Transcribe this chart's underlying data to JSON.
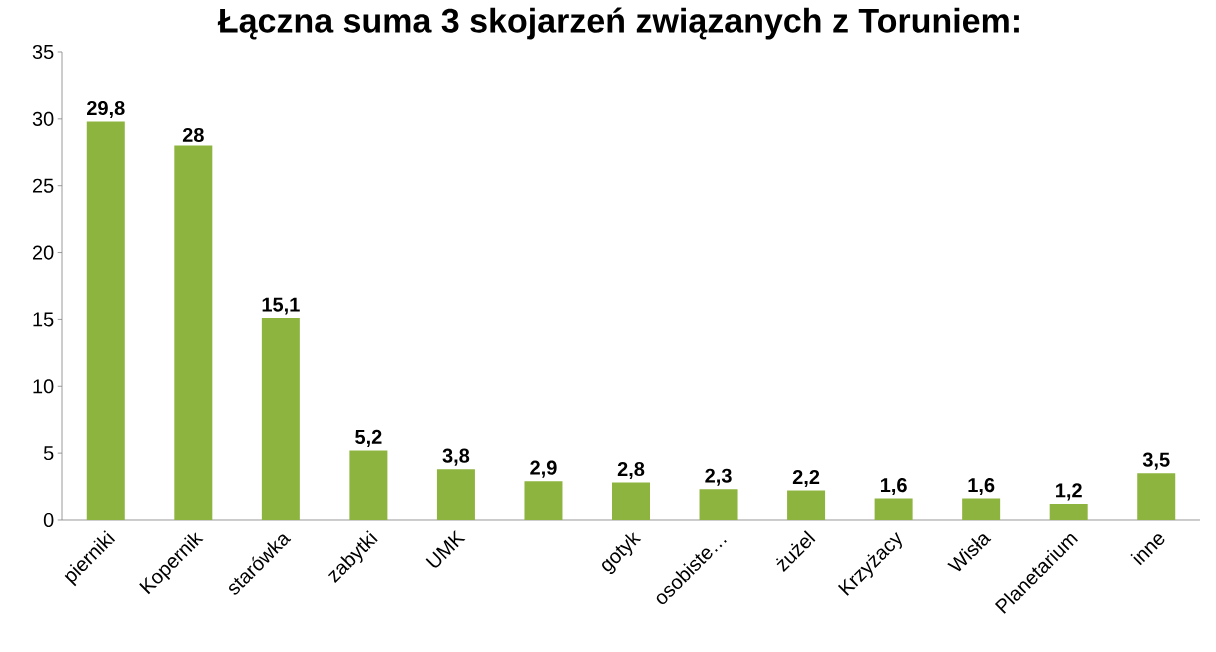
{
  "chart_data": {
    "type": "bar",
    "title": "Łączna suma 3 skojarzeń związanych z Toruniem:",
    "categories": [
      "pierniki",
      "Kopernik",
      "starówka",
      "zabytki",
      "UMK",
      null,
      "gotyk",
      "osobiste…",
      "żużel",
      "Krzyżacy",
      "Wisła",
      "Planetarium",
      "inne"
    ],
    "values": [
      29.8,
      28,
      15.1,
      5.2,
      3.8,
      2.9,
      2.8,
      2.3,
      2.2,
      1.6,
      1.6,
      1.2,
      3.5
    ],
    "value_labels": [
      "29,8",
      "28",
      "15,1",
      "5,2",
      "3,8",
      "2,9",
      "2,8",
      "2,3",
      "2,2",
      "1,6",
      "1,6",
      "1,2",
      "3,5"
    ],
    "color": "#8db43e",
    "ylim": [
      0,
      35
    ],
    "yticks": [
      0,
      5,
      10,
      15,
      20,
      25,
      30,
      35
    ],
    "grid": false
  }
}
